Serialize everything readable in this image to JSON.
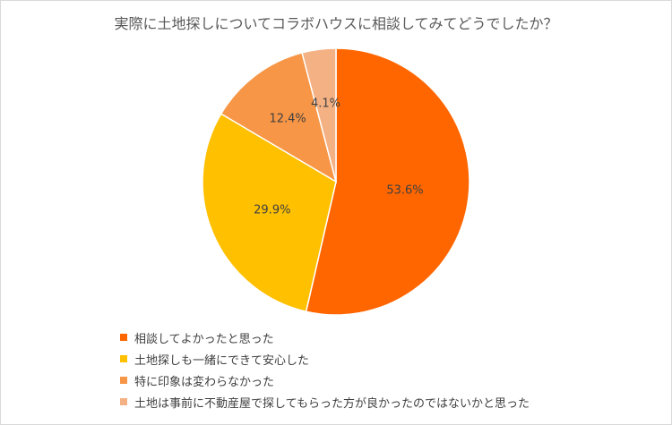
{
  "chart_data": {
    "type": "pie",
    "title": "実際に土地探しについてコラボハウスに相談してみてどうでしたか？",
    "categories": [
      "相談してよかったと思った",
      "土地探しも一緒にできて安心した",
      "特に印象は変わらなかった",
      "土地は事前に不動産屋で探してもらった方が良かったのではないかと思った"
    ],
    "values": [
      53.6,
      29.9,
      12.4,
      4.1
    ],
    "labels": [
      "53.6%",
      "29.9%",
      "12.4%",
      "4.1%"
    ],
    "colors": [
      "#FF6600",
      "#FFC000",
      "#F79646",
      "#F4B183"
    ],
    "legend_position": "bottom-left"
  }
}
